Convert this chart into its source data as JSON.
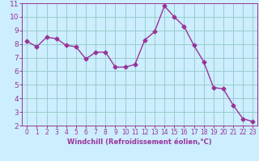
{
  "x": [
    0,
    1,
    2,
    3,
    4,
    5,
    6,
    7,
    8,
    9,
    10,
    11,
    12,
    13,
    14,
    15,
    16,
    17,
    18,
    19,
    20,
    21,
    22,
    23
  ],
  "y": [
    8.2,
    7.8,
    8.5,
    8.4,
    7.9,
    7.8,
    6.9,
    7.4,
    7.4,
    6.3,
    6.3,
    6.5,
    8.3,
    8.9,
    10.8,
    10.0,
    9.3,
    7.9,
    6.7,
    4.8,
    4.7,
    3.5,
    2.5,
    2.3
  ],
  "line_color": "#993399",
  "marker": "D",
  "marker_size": 2.5,
  "bg_color": "#cceeff",
  "grid_color": "#99cccc",
  "xlabel": "Windchill (Refroidissement éolien,°C)",
  "xlim": [
    -0.5,
    23.5
  ],
  "ylim": [
    2,
    11
  ],
  "yticks": [
    2,
    3,
    4,
    5,
    6,
    7,
    8,
    9,
    10,
    11
  ],
  "xticks": [
    0,
    1,
    2,
    3,
    4,
    5,
    6,
    7,
    8,
    9,
    10,
    11,
    12,
    13,
    14,
    15,
    16,
    17,
    18,
    19,
    20,
    21,
    22,
    23
  ],
  "line_width": 1.0,
  "spine_color": "#993399",
  "tick_color": "#993399",
  "label_color": "#993399",
  "xlabel_fontsize": 6.0,
  "tick_fontsize_x": 5.5,
  "tick_fontsize_y": 6.5
}
